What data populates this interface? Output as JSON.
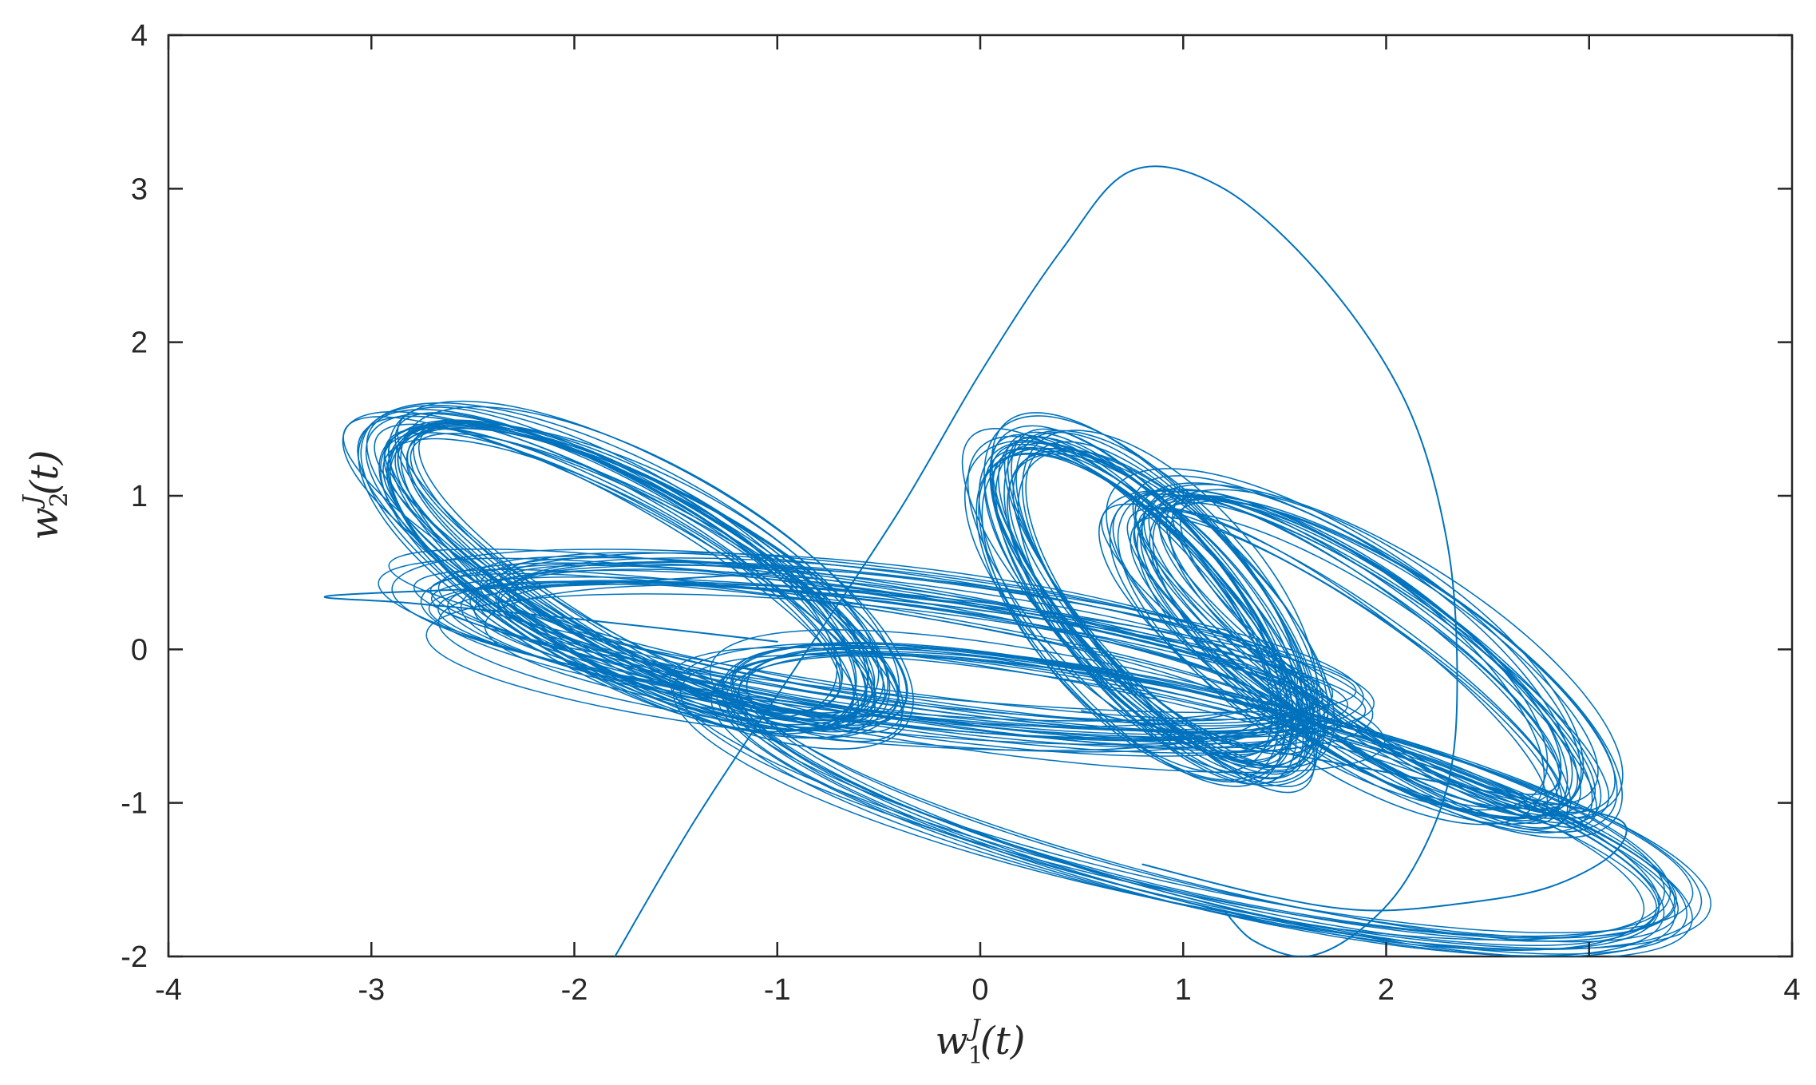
{
  "chart_data": {
    "type": "line",
    "title": "",
    "xlabel": {
      "base": "w",
      "sub": "1",
      "sup": "J",
      "arg": "(t)"
    },
    "ylabel": {
      "base": "w",
      "sub": "2",
      "sup": "J",
      "arg": "(t)"
    },
    "xlim": [
      -4,
      4
    ],
    "ylim": [
      -2,
      4
    ],
    "xticks": [
      -4,
      -3,
      -2,
      -1,
      0,
      1,
      2,
      3,
      4
    ],
    "yticks": [
      -2,
      -1,
      0,
      1,
      2,
      3,
      4
    ],
    "xtick_labels": [
      "-4",
      "-3",
      "-2",
      "-1",
      "0",
      "1",
      "2",
      "3",
      "4"
    ],
    "ytick_labels": [
      "-2",
      "-1",
      "0",
      "1",
      "2",
      "3",
      "4"
    ],
    "grid": false,
    "legend": "none",
    "line_color": "#0072BD",
    "series": [
      {
        "segments": [
          {
            "role": "transient",
            "points": [
              [
                -1.8,
                -2.0
              ],
              [
                -1.4,
                -1.1
              ],
              [
                -0.9,
                -0.1
              ],
              [
                -0.4,
                0.9
              ],
              [
                0.0,
                1.8
              ],
              [
                0.4,
                2.6
              ],
              [
                0.75,
                3.12
              ],
              [
                1.2,
                3.0
              ],
              [
                1.7,
                2.4
              ],
              [
                2.1,
                1.6
              ],
              [
                2.3,
                0.7
              ],
              [
                2.35,
                -0.2
              ],
              [
                2.3,
                -0.9
              ],
              [
                2.1,
                -1.5
              ],
              [
                1.85,
                -1.85
              ],
              [
                1.6,
                -2.0
              ],
              [
                1.35,
                -1.9
              ],
              [
                1.2,
                -1.7
              ]
            ]
          },
          {
            "role": "excursion",
            "points": [
              [
                -1.0,
                0.5
              ],
              [
                -2.0,
                0.42
              ],
              [
                -3.2,
                0.35
              ],
              [
                -2.8,
                0.3
              ],
              [
                -2.0,
                0.2
              ],
              [
                -1.0,
                0.05
              ]
            ]
          },
          {
            "role": "right-loop",
            "points": [
              [
                0.5,
                -0.4
              ],
              [
                1.2,
                -0.6
              ],
              [
                2.0,
                -0.8
              ],
              [
                2.6,
                -0.95
              ],
              [
                3.0,
                -1.05
              ],
              [
                3.18,
                -1.15
              ],
              [
                3.1,
                -1.35
              ],
              [
                2.8,
                -1.55
              ],
              [
                2.4,
                -1.65
              ],
              [
                1.9,
                -1.7
              ],
              [
                1.4,
                -1.6
              ],
              [
                0.8,
                -1.4
              ]
            ]
          }
        ]
      }
    ]
  }
}
